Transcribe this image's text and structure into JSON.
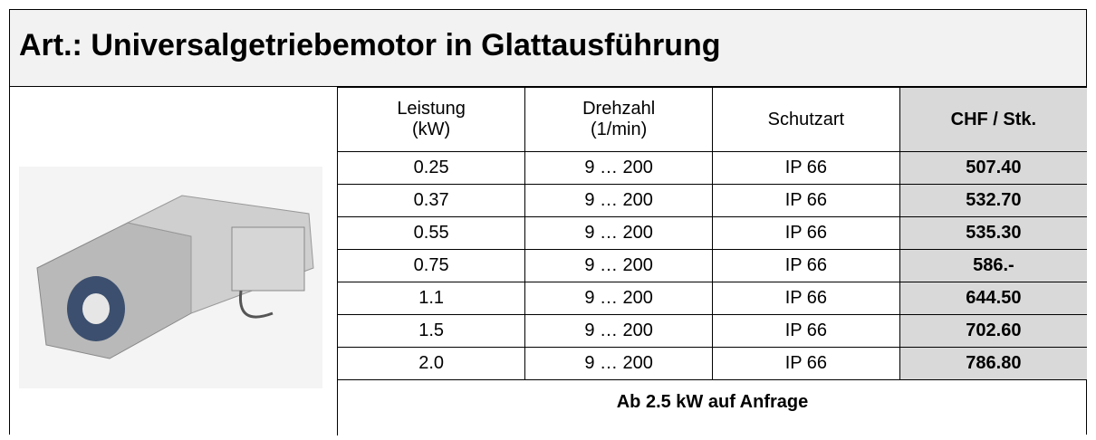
{
  "header": {
    "title": "Art.: Universalgetriebemotor in Glattausführung"
  },
  "table": {
    "columns": [
      "Leistung (kW)",
      "Drehzahl (1/min)",
      "Schutzart",
      "CHF / Stk."
    ],
    "rows": [
      [
        "0.25",
        "9 … 200",
        "IP 66",
        "507.40"
      ],
      [
        "0.37",
        "9 … 200",
        "IP 66",
        "532.70"
      ],
      [
        "0.55",
        "9 … 200",
        "IP 66",
        "535.30"
      ],
      [
        "0.75",
        "9 … 200",
        "IP 66",
        "586.-"
      ],
      [
        "1.1",
        "9 … 200",
        "IP 66",
        "644.50"
      ],
      [
        "1.5",
        "9 … 200",
        "IP 66",
        "702.60"
      ],
      [
        "2.0",
        "9 … 200",
        "IP 66",
        "786.80"
      ]
    ],
    "footer": "Ab 2.5 kW auf Anfrage"
  }
}
